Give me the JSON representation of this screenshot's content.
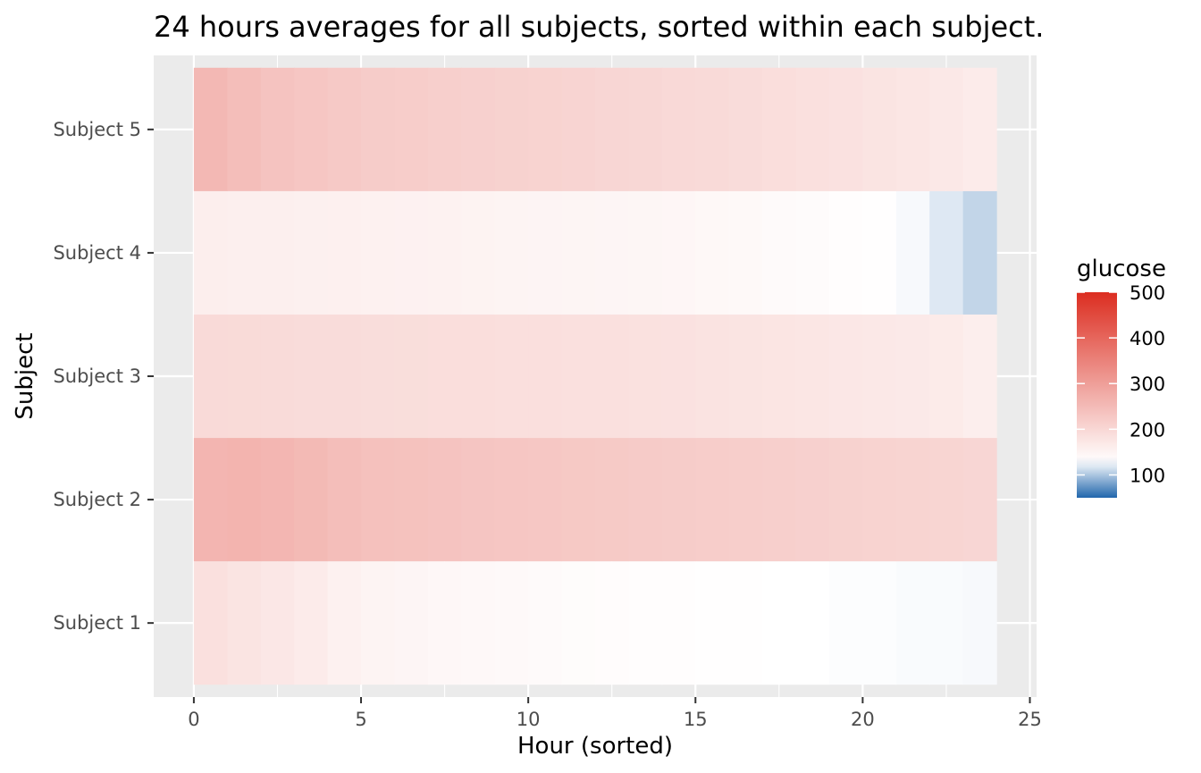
{
  "chart_data": {
    "type": "heatmap",
    "title": "24 hours averages for all subjects, sorted within each subject.",
    "xlabel": "Hour (sorted)",
    "ylabel": "Subject",
    "xlim": [
      -1.2,
      25.2
    ],
    "x_ticks": [
      0,
      5,
      10,
      15,
      20,
      25
    ],
    "x_tick_labels": [
      "0",
      "5",
      "10",
      "15",
      "20",
      "25"
    ],
    "x": [
      0,
      1,
      2,
      3,
      4,
      5,
      6,
      7,
      8,
      9,
      10,
      11,
      12,
      13,
      14,
      15,
      16,
      17,
      18,
      19,
      20,
      21,
      22,
      23
    ],
    "categories": [
      "Subject 1",
      "Subject 2",
      "Subject 3",
      "Subject 4",
      "Subject 5"
    ],
    "series": [
      {
        "name": "Subject 1",
        "values": [
          185,
          178,
          172,
          165,
          155,
          150,
          147,
          144,
          142,
          140,
          138,
          136,
          135,
          134,
          133,
          132,
          131,
          130,
          130,
          129,
          129,
          128,
          128,
          127
        ]
      },
      {
        "name": "Subject 2",
        "values": [
          260,
          262,
          258,
          252,
          245,
          240,
          238,
          235,
          232,
          230,
          228,
          226,
          224,
          222,
          220,
          218,
          216,
          214,
          212,
          210,
          208,
          206,
          204,
          202
        ]
      },
      {
        "name": "Subject 3",
        "values": [
          195,
          194,
          193,
          192,
          191,
          190,
          189,
          188,
          188,
          187,
          186,
          185,
          184,
          183,
          182,
          180,
          178,
          176,
          174,
          172,
          170,
          168,
          166,
          160
        ]
      },
      {
        "name": "Subject 4",
        "values": [
          160,
          159,
          158,
          157,
          156,
          155,
          154,
          153,
          152,
          150,
          149,
          148,
          147,
          146,
          145,
          143,
          141,
          139,
          137,
          134,
          131,
          127,
          118,
          108
        ]
      },
      {
        "name": "Subject 5",
        "values": [
          255,
          245,
          235,
          230,
          225,
          220,
          218,
          215,
          212,
          210,
          208,
          205,
          202,
          200,
          197,
          195,
          192,
          188,
          185,
          182,
          178,
          174,
          170,
          165
        ]
      }
    ],
    "legend": {
      "title": "glucose",
      "position": "right",
      "breaks": [
        100,
        200,
        300,
        400,
        500
      ],
      "break_labels": [
        "100",
        "200",
        "300",
        "400",
        "500"
      ],
      "range": [
        50,
        500
      ],
      "colors": {
        "low": "#2166ac",
        "mid": "#ffffff",
        "high": "#dc2d20",
        "midpoint": 130
      }
    },
    "panel_background": "#ebebeb",
    "grid": true
  }
}
